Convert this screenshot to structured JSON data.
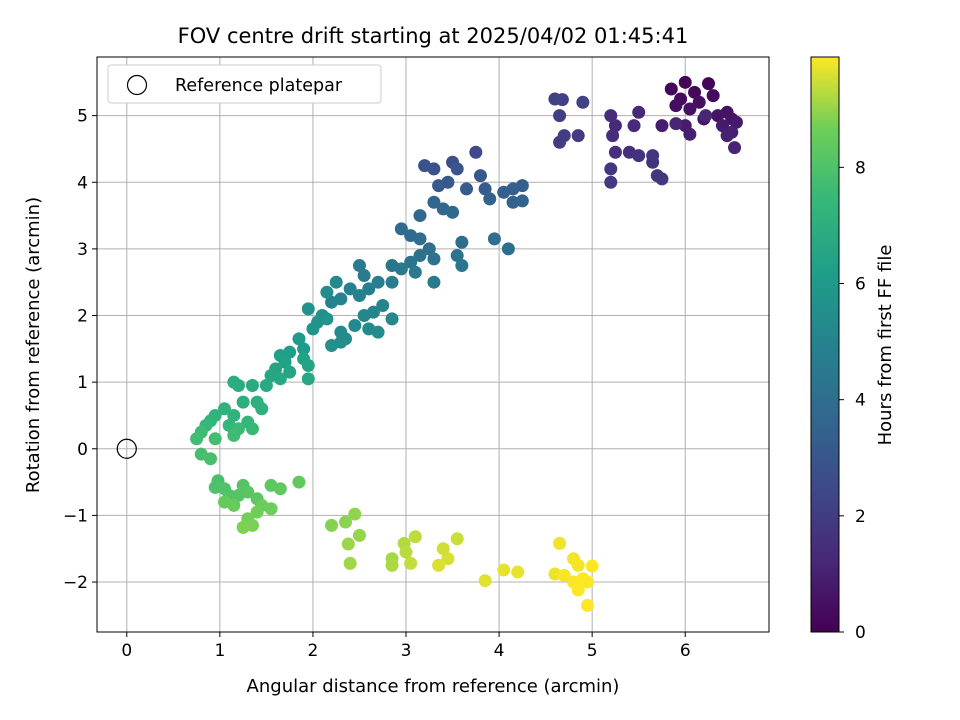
{
  "chart_data": {
    "type": "scatter",
    "title": "FOV centre drift starting at 2025/04/02 01:45:41",
    "xlabel": "Angular distance from reference (arcmin)",
    "ylabel": "Rotation from reference (arcmin)",
    "xlim": [
      -0.32,
      6.9
    ],
    "ylim": [
      -2.75,
      5.88
    ],
    "xticks": [
      0,
      1,
      2,
      3,
      4,
      5,
      6
    ],
    "yticks": [
      -2,
      -1,
      0,
      1,
      2,
      3,
      4,
      5
    ],
    "grid": true,
    "legend": {
      "position": "top-left",
      "label": "Reference platepar"
    },
    "reference_point": {
      "x": 0,
      "y": 0
    },
    "colorbar": {
      "label": "Hours from first FF file",
      "range": [
        0,
        9.9
      ],
      "ticks": [
        0,
        2,
        4,
        6,
        8
      ],
      "colormap": "viridis"
    },
    "points": [
      {
        "x": 6.0,
        "y": 5.5,
        "t": 0.1
      },
      {
        "x": 6.25,
        "y": 5.48,
        "t": 0.15
      },
      {
        "x": 5.85,
        "y": 5.4,
        "t": 0.2
      },
      {
        "x": 6.1,
        "y": 5.35,
        "t": 0.25
      },
      {
        "x": 6.3,
        "y": 5.3,
        "t": 0.3
      },
      {
        "x": 5.95,
        "y": 5.25,
        "t": 0.35
      },
      {
        "x": 6.15,
        "y": 5.2,
        "t": 0.4
      },
      {
        "x": 5.9,
        "y": 5.15,
        "t": 0.45
      },
      {
        "x": 6.05,
        "y": 5.1,
        "t": 0.5
      },
      {
        "x": 6.45,
        "y": 5.05,
        "t": 0.55
      },
      {
        "x": 6.35,
        "y": 5.0,
        "t": 0.6
      },
      {
        "x": 6.5,
        "y": 4.95,
        "t": 0.65
      },
      {
        "x": 6.2,
        "y": 4.95,
        "t": 0.7
      },
      {
        "x": 6.55,
        "y": 4.9,
        "t": 0.75
      },
      {
        "x": 6.4,
        "y": 4.85,
        "t": 0.8
      },
      {
        "x": 6.0,
        "y": 4.85,
        "t": 0.85
      },
      {
        "x": 5.75,
        "y": 4.85,
        "t": 0.9
      },
      {
        "x": 6.5,
        "y": 4.75,
        "t": 0.95
      },
      {
        "x": 6.05,
        "y": 4.72,
        "t": 1.0
      },
      {
        "x": 6.45,
        "y": 4.7,
        "t": 1.05
      },
      {
        "x": 6.53,
        "y": 4.52,
        "t": 1.1
      },
      {
        "x": 5.9,
        "y": 4.88,
        "t": 1.15
      },
      {
        "x": 6.22,
        "y": 5.0,
        "t": 1.2
      },
      {
        "x": 5.5,
        "y": 5.05,
        "t": 1.25
      },
      {
        "x": 5.45,
        "y": 4.85,
        "t": 1.3
      },
      {
        "x": 5.25,
        "y": 4.85,
        "t": 1.35
      },
      {
        "x": 5.2,
        "y": 5.0,
        "t": 1.4
      },
      {
        "x": 5.22,
        "y": 4.7,
        "t": 1.45
      },
      {
        "x": 5.25,
        "y": 4.45,
        "t": 1.5
      },
      {
        "x": 5.4,
        "y": 4.45,
        "t": 1.55
      },
      {
        "x": 5.5,
        "y": 4.4,
        "t": 1.6
      },
      {
        "x": 5.65,
        "y": 4.4,
        "t": 1.65
      },
      {
        "x": 5.65,
        "y": 4.3,
        "t": 1.7
      },
      {
        "x": 5.2,
        "y": 4.2,
        "t": 1.75
      },
      {
        "x": 5.7,
        "y": 4.1,
        "t": 1.8
      },
      {
        "x": 5.75,
        "y": 4.05,
        "t": 1.85
      },
      {
        "x": 5.2,
        "y": 4.0,
        "t": 1.9
      },
      {
        "x": 4.85,
        "y": 4.7,
        "t": 1.95
      },
      {
        "x": 4.7,
        "y": 4.7,
        "t": 2.0
      },
      {
        "x": 4.65,
        "y": 4.6,
        "t": 2.05
      },
      {
        "x": 4.65,
        "y": 5.0,
        "t": 2.1
      },
      {
        "x": 4.6,
        "y": 5.25,
        "t": 2.15
      },
      {
        "x": 4.68,
        "y": 5.24,
        "t": 2.2
      },
      {
        "x": 4.9,
        "y": 5.2,
        "t": 2.25
      },
      {
        "x": 3.75,
        "y": 4.45,
        "t": 2.5
      },
      {
        "x": 3.5,
        "y": 4.3,
        "t": 2.7
      },
      {
        "x": 3.2,
        "y": 4.25,
        "t": 2.8
      },
      {
        "x": 3.3,
        "y": 4.2,
        "t": 2.9
      },
      {
        "x": 3.55,
        "y": 4.2,
        "t": 3.0
      },
      {
        "x": 3.8,
        "y": 4.1,
        "t": 3.05
      },
      {
        "x": 3.45,
        "y": 4.0,
        "t": 3.1
      },
      {
        "x": 3.35,
        "y": 3.95,
        "t": 3.15
      },
      {
        "x": 3.65,
        "y": 3.9,
        "t": 3.2
      },
      {
        "x": 3.85,
        "y": 3.9,
        "t": 3.25
      },
      {
        "x": 4.25,
        "y": 3.95,
        "t": 3.3
      },
      {
        "x": 4.15,
        "y": 3.9,
        "t": 3.35
      },
      {
        "x": 4.05,
        "y": 3.85,
        "t": 3.4
      },
      {
        "x": 3.9,
        "y": 3.75,
        "t": 3.45
      },
      {
        "x": 4.15,
        "y": 3.7,
        "t": 3.5
      },
      {
        "x": 4.25,
        "y": 3.72,
        "t": 3.55
      },
      {
        "x": 3.3,
        "y": 3.7,
        "t": 3.6
      },
      {
        "x": 3.4,
        "y": 3.6,
        "t": 3.65
      },
      {
        "x": 3.5,
        "y": 3.55,
        "t": 3.7
      },
      {
        "x": 3.15,
        "y": 3.5,
        "t": 3.75
      },
      {
        "x": 2.95,
        "y": 3.3,
        "t": 3.8
      },
      {
        "x": 3.05,
        "y": 3.2,
        "t": 3.85
      },
      {
        "x": 3.15,
        "y": 3.15,
        "t": 3.9
      },
      {
        "x": 3.6,
        "y": 3.1,
        "t": 3.95
      },
      {
        "x": 3.95,
        "y": 3.15,
        "t": 4.0
      },
      {
        "x": 4.1,
        "y": 3.0,
        "t": 4.05
      },
      {
        "x": 3.25,
        "y": 3.0,
        "t": 4.1
      },
      {
        "x": 3.15,
        "y": 2.9,
        "t": 4.15
      },
      {
        "x": 3.3,
        "y": 2.85,
        "t": 4.2
      },
      {
        "x": 3.05,
        "y": 2.8,
        "t": 4.25
      },
      {
        "x": 3.55,
        "y": 2.9,
        "t": 4.3
      },
      {
        "x": 3.6,
        "y": 2.75,
        "t": 4.35
      },
      {
        "x": 2.85,
        "y": 2.75,
        "t": 4.4
      },
      {
        "x": 2.95,
        "y": 2.7,
        "t": 4.45
      },
      {
        "x": 3.1,
        "y": 2.65,
        "t": 4.5
      },
      {
        "x": 3.3,
        "y": 2.5,
        "t": 4.55
      },
      {
        "x": 2.5,
        "y": 2.75,
        "t": 4.6
      },
      {
        "x": 2.55,
        "y": 2.6,
        "t": 4.65
      },
      {
        "x": 2.7,
        "y": 2.5,
        "t": 4.7
      },
      {
        "x": 2.85,
        "y": 2.5,
        "t": 4.75
      },
      {
        "x": 2.6,
        "y": 2.4,
        "t": 4.8
      },
      {
        "x": 2.4,
        "y": 2.4,
        "t": 4.85
      },
      {
        "x": 2.5,
        "y": 2.3,
        "t": 4.9
      },
      {
        "x": 2.3,
        "y": 2.25,
        "t": 4.95
      },
      {
        "x": 2.2,
        "y": 2.2,
        "t": 5.0
      },
      {
        "x": 2.75,
        "y": 2.15,
        "t": 5.05
      },
      {
        "x": 2.65,
        "y": 2.05,
        "t": 5.1
      },
      {
        "x": 2.55,
        "y": 2.0,
        "t": 5.15
      },
      {
        "x": 2.85,
        "y": 1.95,
        "t": 5.2
      },
      {
        "x": 2.45,
        "y": 1.85,
        "t": 5.25
      },
      {
        "x": 2.3,
        "y": 1.75,
        "t": 5.3
      },
      {
        "x": 2.6,
        "y": 1.8,
        "t": 5.35
      },
      {
        "x": 2.7,
        "y": 1.75,
        "t": 5.4
      },
      {
        "x": 2.35,
        "y": 1.65,
        "t": 5.45
      },
      {
        "x": 2.3,
        "y": 1.6,
        "t": 5.5
      },
      {
        "x": 2.2,
        "y": 1.55,
        "t": 5.55
      },
      {
        "x": 2.1,
        "y": 2.0,
        "t": 5.6
      },
      {
        "x": 2.05,
        "y": 1.9,
        "t": 5.65
      },
      {
        "x": 1.95,
        "y": 2.1,
        "t": 5.7
      },
      {
        "x": 2.15,
        "y": 1.95,
        "t": 5.75
      },
      {
        "x": 2.0,
        "y": 1.8,
        "t": 5.8
      },
      {
        "x": 2.25,
        "y": 2.5,
        "t": 5.3
      },
      {
        "x": 2.15,
        "y": 2.35,
        "t": 5.4
      },
      {
        "x": 1.85,
        "y": 1.65,
        "t": 6.0
      },
      {
        "x": 1.9,
        "y": 1.5,
        "t": 6.1
      },
      {
        "x": 1.75,
        "y": 1.45,
        "t": 6.2
      },
      {
        "x": 1.65,
        "y": 1.4,
        "t": 6.3
      },
      {
        "x": 1.7,
        "y": 1.3,
        "t": 6.35
      },
      {
        "x": 1.9,
        "y": 1.35,
        "t": 6.4
      },
      {
        "x": 1.95,
        "y": 1.25,
        "t": 6.45
      },
      {
        "x": 1.6,
        "y": 1.2,
        "t": 6.5
      },
      {
        "x": 1.75,
        "y": 1.15,
        "t": 6.55
      },
      {
        "x": 1.55,
        "y": 1.1,
        "t": 6.6
      },
      {
        "x": 1.65,
        "y": 1.05,
        "t": 6.65
      },
      {
        "x": 1.95,
        "y": 1.05,
        "t": 6.7
      },
      {
        "x": 1.5,
        "y": 0.95,
        "t": 6.75
      },
      {
        "x": 1.35,
        "y": 0.95,
        "t": 6.8
      },
      {
        "x": 1.2,
        "y": 0.95,
        "t": 6.85
      },
      {
        "x": 1.15,
        "y": 1.0,
        "t": 6.9
      },
      {
        "x": 1.25,
        "y": 0.7,
        "t": 7.0
      },
      {
        "x": 1.4,
        "y": 0.7,
        "t": 7.05
      },
      {
        "x": 1.45,
        "y": 0.6,
        "t": 7.1
      },
      {
        "x": 1.05,
        "y": 0.6,
        "t": 7.15
      },
      {
        "x": 1.15,
        "y": 0.5,
        "t": 7.2
      },
      {
        "x": 0.95,
        "y": 0.5,
        "t": 7.25
      },
      {
        "x": 0.9,
        "y": 0.42,
        "t": 7.3
      },
      {
        "x": 1.3,
        "y": 0.4,
        "t": 7.35
      },
      {
        "x": 1.1,
        "y": 0.35,
        "t": 7.4
      },
      {
        "x": 0.85,
        "y": 0.35,
        "t": 7.45
      },
      {
        "x": 1.35,
        "y": 0.3,
        "t": 7.5
      },
      {
        "x": 1.2,
        "y": 0.3,
        "t": 7.55
      },
      {
        "x": 0.8,
        "y": 0.25,
        "t": 7.6
      },
      {
        "x": 1.15,
        "y": 0.2,
        "t": 7.65
      },
      {
        "x": 0.75,
        "y": 0.15,
        "t": 7.7
      },
      {
        "x": 0.95,
        "y": 0.15,
        "t": 7.75
      },
      {
        "x": 0.8,
        "y": -0.08,
        "t": 7.8
      },
      {
        "x": 0.9,
        "y": -0.15,
        "t": 7.85
      },
      {
        "x": 0.98,
        "y": -0.48,
        "t": 7.9
      },
      {
        "x": 0.95,
        "y": -0.58,
        "t": 7.95
      },
      {
        "x": 1.05,
        "y": -0.6,
        "t": 8.0
      },
      {
        "x": 1.1,
        "y": -0.7,
        "t": 8.05
      },
      {
        "x": 1.2,
        "y": -0.7,
        "t": 8.1
      },
      {
        "x": 1.25,
        "y": -0.55,
        "t": 8.15
      },
      {
        "x": 1.3,
        "y": -0.65,
        "t": 8.2
      },
      {
        "x": 1.4,
        "y": -0.75,
        "t": 8.25
      },
      {
        "x": 1.55,
        "y": -0.55,
        "t": 8.3
      },
      {
        "x": 1.65,
        "y": -0.6,
        "t": 8.35
      },
      {
        "x": 1.85,
        "y": -0.5,
        "t": 8.4
      },
      {
        "x": 1.05,
        "y": -0.8,
        "t": 8.45
      },
      {
        "x": 1.15,
        "y": -0.85,
        "t": 8.5
      },
      {
        "x": 1.45,
        "y": -0.85,
        "t": 8.55
      },
      {
        "x": 1.55,
        "y": -0.9,
        "t": 8.6
      },
      {
        "x": 1.4,
        "y": -0.95,
        "t": 8.65
      },
      {
        "x": 1.3,
        "y": -1.05,
        "t": 8.7
      },
      {
        "x": 1.35,
        "y": -1.15,
        "t": 8.75
      },
      {
        "x": 1.25,
        "y": -1.18,
        "t": 8.8
      },
      {
        "x": 2.2,
        "y": -1.15,
        "t": 8.85
      },
      {
        "x": 2.35,
        "y": -1.1,
        "t": 8.9
      },
      {
        "x": 2.45,
        "y": -0.98,
        "t": 8.95
      },
      {
        "x": 2.5,
        "y": -1.3,
        "t": 9.0
      },
      {
        "x": 2.38,
        "y": -1.43,
        "t": 9.05
      },
      {
        "x": 2.4,
        "y": -1.72,
        "t": 9.1
      },
      {
        "x": 2.85,
        "y": -1.65,
        "t": 9.15
      },
      {
        "x": 2.85,
        "y": -1.75,
        "t": 9.2
      },
      {
        "x": 2.98,
        "y": -1.42,
        "t": 9.25
      },
      {
        "x": 3.0,
        "y": -1.55,
        "t": 9.3
      },
      {
        "x": 3.1,
        "y": -1.32,
        "t": 9.35
      },
      {
        "x": 3.05,
        "y": -1.72,
        "t": 9.4
      },
      {
        "x": 3.55,
        "y": -1.35,
        "t": 9.45
      },
      {
        "x": 3.4,
        "y": -1.5,
        "t": 9.5
      },
      {
        "x": 3.45,
        "y": -1.65,
        "t": 9.55
      },
      {
        "x": 3.35,
        "y": -1.75,
        "t": 9.6
      },
      {
        "x": 3.85,
        "y": -1.98,
        "t": 9.65
      },
      {
        "x": 4.05,
        "y": -1.82,
        "t": 9.7
      },
      {
        "x": 4.2,
        "y": -1.85,
        "t": 9.72
      },
      {
        "x": 4.6,
        "y": -1.88,
        "t": 9.75
      },
      {
        "x": 4.65,
        "y": -1.42,
        "t": 9.77
      },
      {
        "x": 4.8,
        "y": -1.65,
        "t": 9.8
      },
      {
        "x": 4.85,
        "y": -1.75,
        "t": 9.82
      },
      {
        "x": 4.7,
        "y": -1.9,
        "t": 9.84
      },
      {
        "x": 4.8,
        "y": -2.0,
        "t": 9.86
      },
      {
        "x": 4.85,
        "y": -2.12,
        "t": 9.88
      },
      {
        "x": 4.9,
        "y": -1.95,
        "t": 9.9
      },
      {
        "x": 4.95,
        "y": -2.0,
        "t": 9.9
      },
      {
        "x": 5.0,
        "y": -1.76,
        "t": 9.9
      },
      {
        "x": 4.95,
        "y": -2.35,
        "t": 9.9
      }
    ]
  }
}
